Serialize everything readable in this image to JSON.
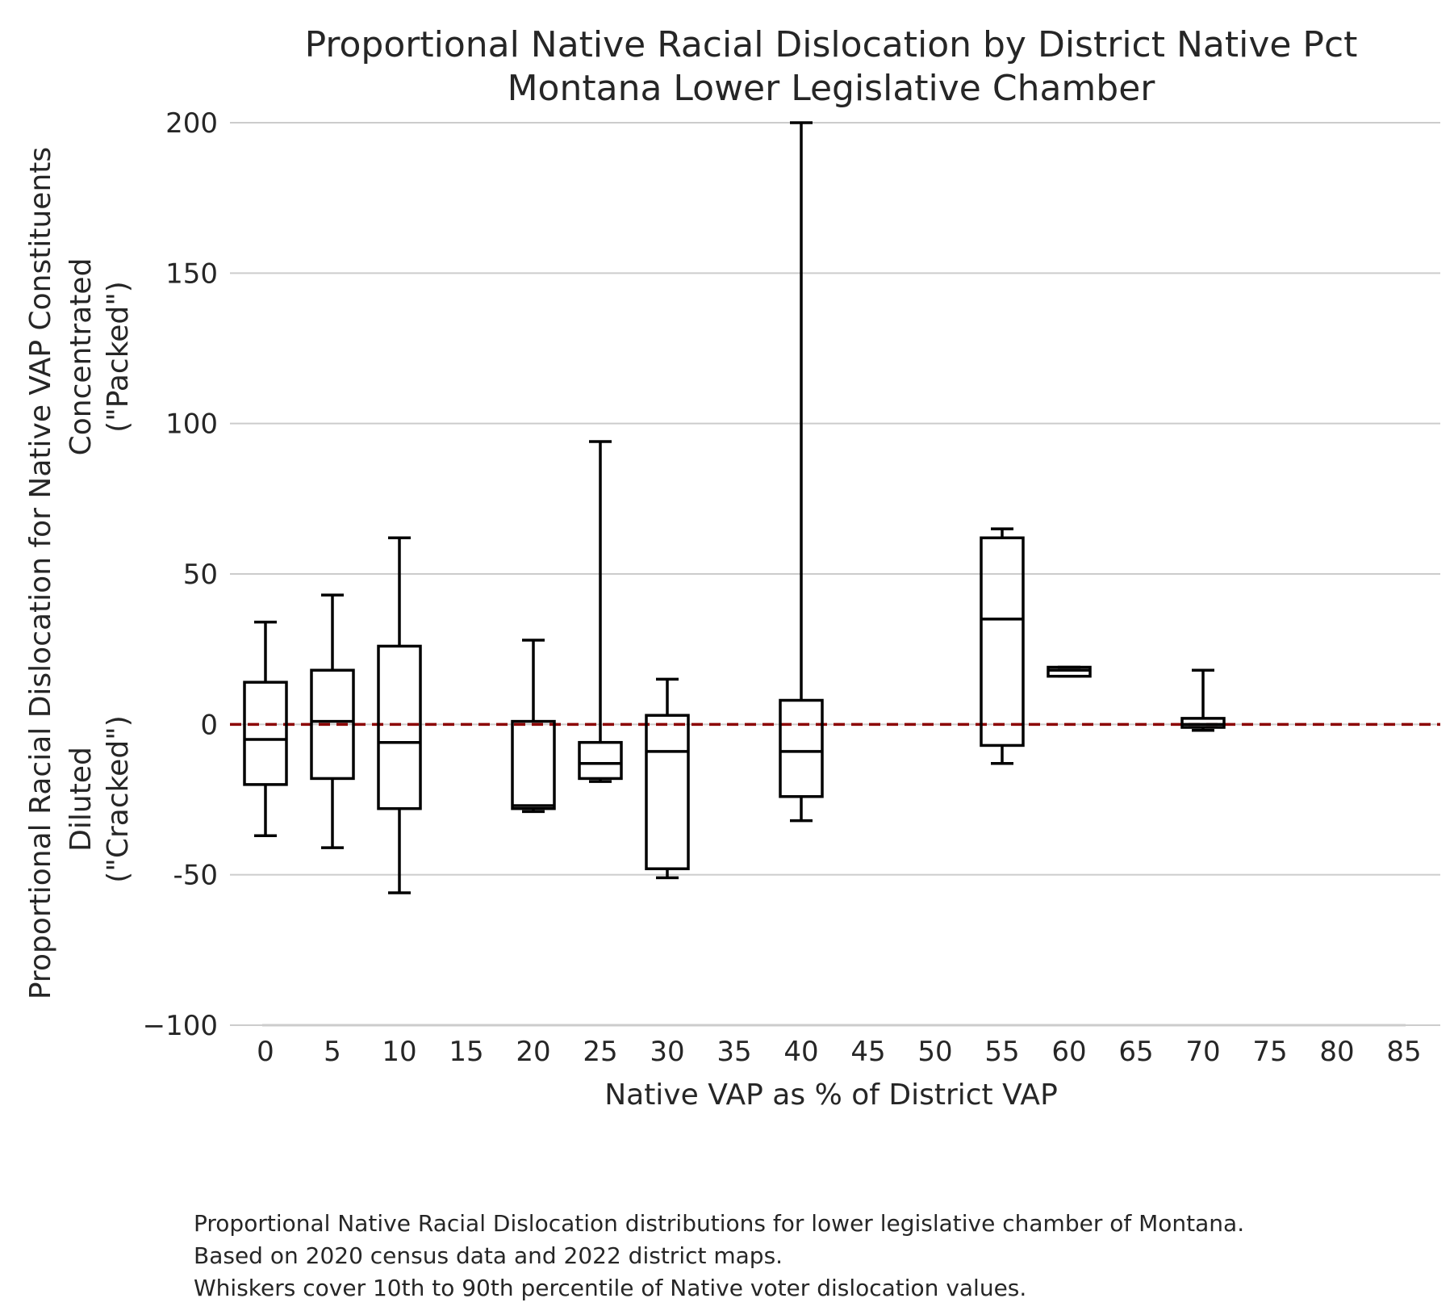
{
  "chart_data": {
    "type": "box",
    "title": "Proportional Native Racial Dislocation by District Native Pct",
    "subtitle": "Montana Lower Legislative Chamber",
    "xlabel": "Native VAP as % of District VAP",
    "ylabel": "Proportional Racial Dislocation for Native VAP Constituents",
    "ylabel_top_note": [
      "Concentrated",
      "(\"Packed\")"
    ],
    "ylabel_bottom_note": [
      "Diluted",
      "(\"Cracked\")"
    ],
    "ylim": [
      -100,
      200
    ],
    "yticks": [
      -100,
      -50,
      0,
      50,
      100,
      150,
      200
    ],
    "yticklabels": [
      "−100",
      "-50",
      "0",
      "50",
      "100",
      "150",
      "200"
    ],
    "xticks": [
      0,
      5,
      10,
      15,
      20,
      25,
      30,
      35,
      40,
      45,
      50,
      55,
      60,
      65,
      70,
      75,
      80,
      85
    ],
    "grid": "horizontal",
    "reference_line": {
      "y": 0,
      "style": "dashed",
      "color": "#8b0000"
    },
    "boxes": [
      {
        "x": 0,
        "whisker_low": -37,
        "q1": -20,
        "median": -5,
        "q3": 14,
        "whisker_high": 34
      },
      {
        "x": 5,
        "whisker_low": -41,
        "q1": -18,
        "median": 1,
        "q3": 18,
        "whisker_high": 43
      },
      {
        "x": 10,
        "whisker_low": -56,
        "q1": -28,
        "median": -6,
        "q3": 26,
        "whisker_high": 62
      },
      {
        "x": 20,
        "whisker_low": -29,
        "q1": -28,
        "median": -27,
        "q3": 1,
        "whisker_high": 28
      },
      {
        "x": 25,
        "whisker_low": -19,
        "q1": -18,
        "median": -13,
        "q3": -6,
        "whisker_high": 94
      },
      {
        "x": 30,
        "whisker_low": -51,
        "q1": -48,
        "median": -9,
        "q3": 3,
        "whisker_high": 15
      },
      {
        "x": 40,
        "whisker_low": -32,
        "q1": -24,
        "median": -9,
        "q3": 8,
        "whisker_high": 200
      },
      {
        "x": 55,
        "whisker_low": -13,
        "q1": -7,
        "median": 35,
        "q3": 62,
        "whisker_high": 65
      },
      {
        "x": 60,
        "whisker_low": 16,
        "q1": 16,
        "median": 18,
        "q3": 19,
        "whisker_high": 19
      },
      {
        "x": 70,
        "whisker_low": -2,
        "q1": -1,
        "median": 0,
        "q3": 2,
        "whisker_high": 18
      }
    ],
    "colors": {
      "box": "#000000",
      "grid": "#cccccc",
      "reference": "#8b0000"
    }
  },
  "caption": [
    "Proportional Native Racial Dislocation distributions for lower legislative chamber of Montana.",
    "Based on 2020 census data and 2022 district maps.",
    "Whiskers cover 10th to 90th percentile of Native voter dislocation values."
  ]
}
